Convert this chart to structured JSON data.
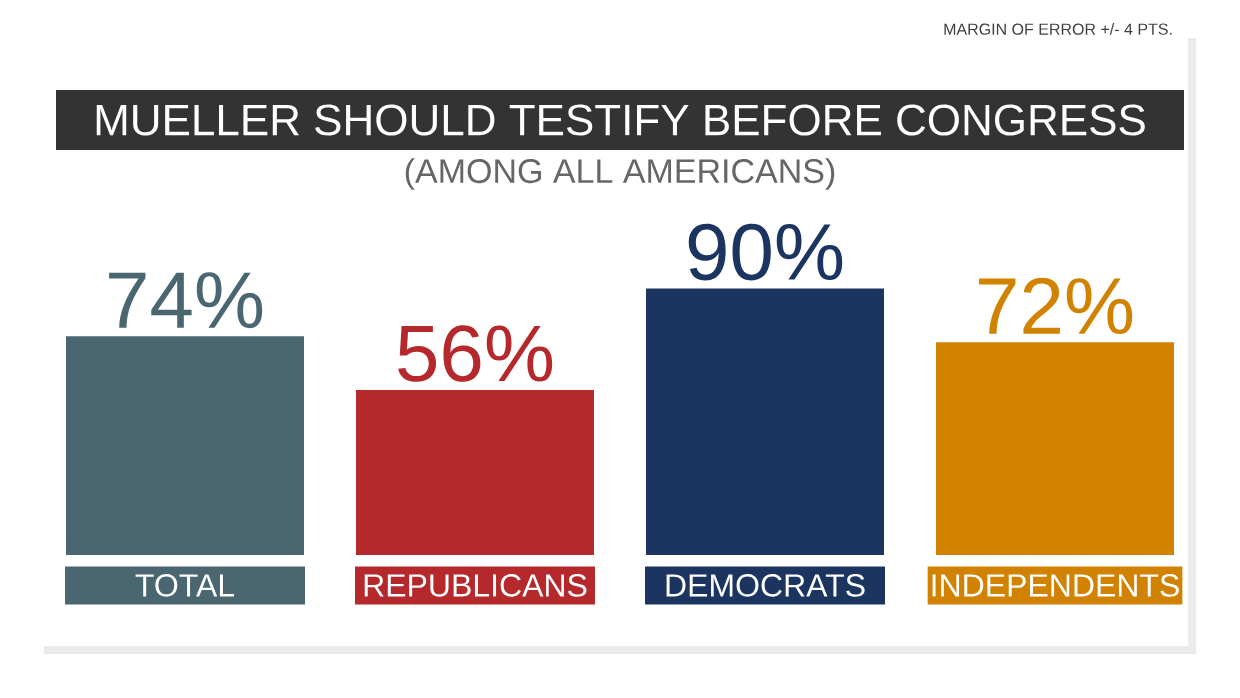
{
  "chart_data": {
    "type": "bar",
    "title": "MUELLER SHOULD TESTIFY BEFORE CONGRESS",
    "subtitle": "(AMONG ALL AMERICANS)",
    "annotations": [
      "MARGIN OF ERROR +/- 4 PTS."
    ],
    "categories": [
      "TOTAL",
      "REPUBLICANS",
      "DEMOCRATS",
      "INDEPENDENTS"
    ],
    "values": [
      74,
      56,
      90,
      72
    ],
    "value_labels": [
      "74%",
      "56%",
      "90%",
      "72%"
    ],
    "colors": [
      "#4a6670",
      "#b5282b",
      "#1b3560",
      "#d08200"
    ]
  }
}
